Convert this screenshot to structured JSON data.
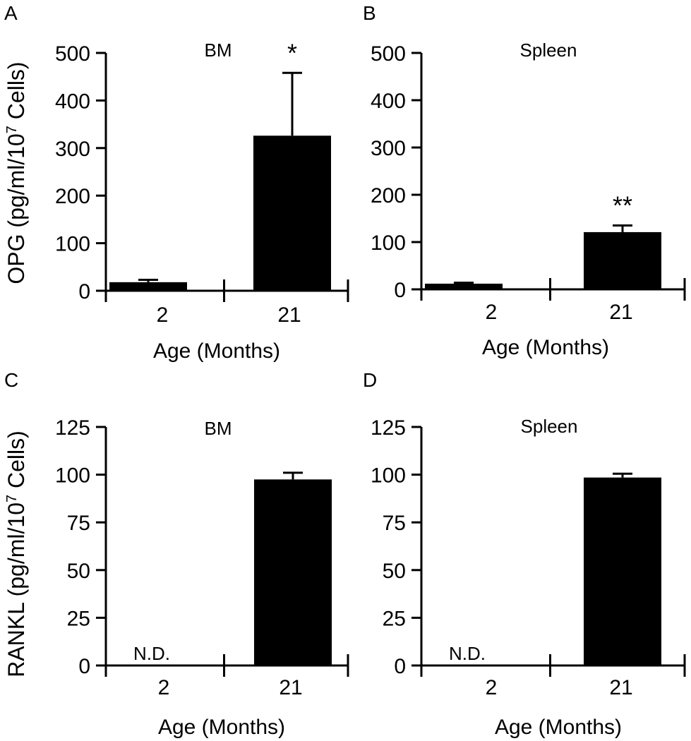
{
  "figure": {
    "ylabel_top_prefix": "OPG (pg/ml/10",
    "ylabel_bottom_prefix": "RANKL (pg/ml/10",
    "ylabel_exponent": "7",
    "ylabel_suffix": " Cells)"
  },
  "chart_data": [
    {
      "type": "bar",
      "panel": "A",
      "title": "BM",
      "xlabel": "Age (Months)",
      "ylabel": "OPG (pg/ml/10^7 Cells)",
      "categories": [
        "2",
        "21"
      ],
      "values": [
        18,
        326
      ],
      "errors": [
        5,
        132
      ],
      "annotations": [
        "",
        "*"
      ],
      "ylim": [
        0,
        500
      ],
      "yticks": [
        0,
        100,
        200,
        300,
        400,
        500
      ]
    },
    {
      "type": "bar",
      "panel": "B",
      "title": "Spleen",
      "xlabel": "Age (Months)",
      "ylabel": "OPG (pg/ml/10^7 Cells)",
      "categories": [
        "2",
        "21"
      ],
      "values": [
        12,
        121
      ],
      "errors": [
        2,
        14
      ],
      "annotations": [
        "",
        "**"
      ],
      "ylim": [
        0,
        500
      ],
      "yticks": [
        0,
        100,
        200,
        300,
        400,
        500
      ]
    },
    {
      "type": "bar",
      "panel": "C",
      "title": "BM",
      "xlabel": "Age (Months)",
      "ylabel": "RANKL (pg/ml/10^7 Cells)",
      "categories": [
        "2",
        "21"
      ],
      "values": [
        null,
        97.5
      ],
      "errors": [
        0,
        3.5
      ],
      "annotations": [
        "N.D.",
        ""
      ],
      "ylim": [
        0,
        125
      ],
      "yticks": [
        0,
        25,
        50,
        75,
        100,
        125
      ]
    },
    {
      "type": "bar",
      "panel": "D",
      "title": "Spleen",
      "xlabel": "Age (Months)",
      "ylabel": "RANKL (pg/ml/10^7 Cells)",
      "categories": [
        "2",
        "21"
      ],
      "values": [
        null,
        98.5
      ],
      "errors": [
        0,
        2
      ],
      "annotations": [
        "N.D.",
        ""
      ],
      "ylim": [
        0,
        125
      ],
      "yticks": [
        0,
        25,
        50,
        75,
        100,
        125
      ]
    }
  ]
}
